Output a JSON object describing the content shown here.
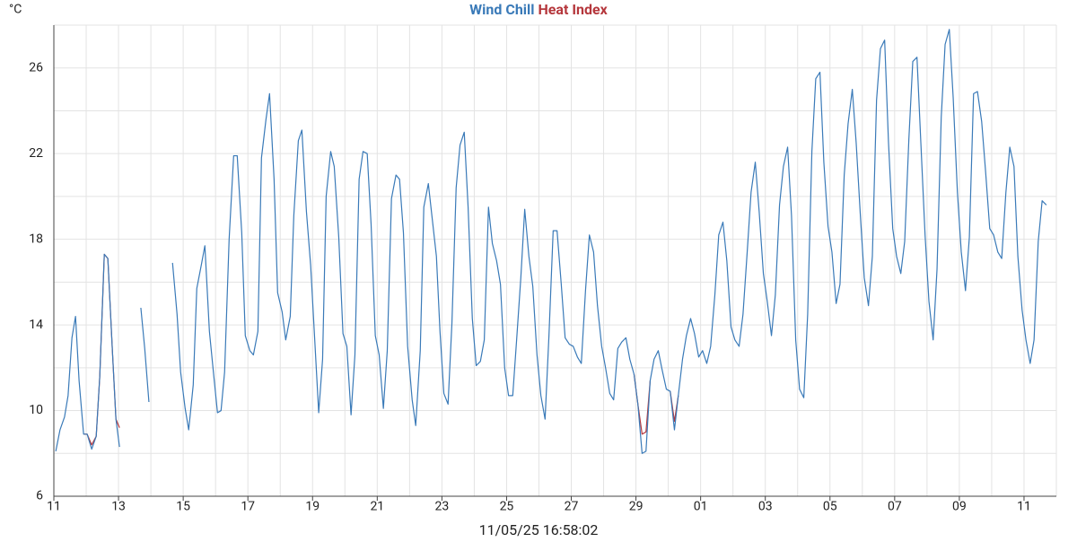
{
  "chart_data": {
    "type": "line",
    "y_unit": "°C",
    "timestamp": "11/05/25 16:58:02",
    "xlim": [
      0,
      31
    ],
    "ylim": [
      6,
      28
    ],
    "xticks": [
      {
        "value": 0,
        "label": "11"
      },
      {
        "value": 2,
        "label": "13"
      },
      {
        "value": 4,
        "label": "15"
      },
      {
        "value": 6,
        "label": "17"
      },
      {
        "value": 8,
        "label": "19"
      },
      {
        "value": 10,
        "label": "21"
      },
      {
        "value": 12,
        "label": "23"
      },
      {
        "value": 14,
        "label": "25"
      },
      {
        "value": 16,
        "label": "27"
      },
      {
        "value": 18,
        "label": "29"
      },
      {
        "value": 20,
        "label": "01"
      },
      {
        "value": 22,
        "label": "03"
      },
      {
        "value": 24,
        "label": "05"
      },
      {
        "value": 26,
        "label": "07"
      },
      {
        "value": 28,
        "label": "09"
      },
      {
        "value": 30,
        "label": "11"
      }
    ],
    "yticks": [
      6,
      10,
      14,
      18,
      22,
      26
    ],
    "xminor": [
      1,
      3,
      5,
      7,
      9,
      11,
      13,
      15,
      17,
      19,
      21,
      23,
      25,
      27,
      29,
      31
    ],
    "yminor": [
      8,
      12,
      16,
      20,
      24,
      28
    ],
    "grid": true,
    "x": [
      0.06,
      0.19,
      0.33,
      0.44,
      0.56,
      0.67,
      0.78,
      0.92,
      1.03,
      1.17,
      1.31,
      1.42,
      1.56,
      1.67,
      1.81,
      1.92,
      2.03,
      2.35,
      2.69,
      2.81,
      2.94,
      3.3,
      3.67,
      3.81,
      3.92,
      4.06,
      4.17,
      4.31,
      4.42,
      4.56,
      4.67,
      4.81,
      4.94,
      5.06,
      5.17,
      5.28,
      5.42,
      5.56,
      5.67,
      5.81,
      5.92,
      6.06,
      6.17,
      6.31,
      6.42,
      6.56,
      6.67,
      6.81,
      6.92,
      7.06,
      7.17,
      7.31,
      7.42,
      7.56,
      7.67,
      7.81,
      7.94,
      8.06,
      8.19,
      8.31,
      8.42,
      8.56,
      8.67,
      8.81,
      8.94,
      9.06,
      9.19,
      9.31,
      9.44,
      9.56,
      9.69,
      9.81,
      9.94,
      10.06,
      10.19,
      10.31,
      10.44,
      10.58,
      10.69,
      10.81,
      10.94,
      11.08,
      11.19,
      11.33,
      11.44,
      11.58,
      11.69,
      11.83,
      11.94,
      12.06,
      12.19,
      12.31,
      12.44,
      12.56,
      12.69,
      12.81,
      12.94,
      13.06,
      13.19,
      13.31,
      13.44,
      13.56,
      13.69,
      13.81,
      13.94,
      14.06,
      14.19,
      14.31,
      14.44,
      14.56,
      14.69,
      14.81,
      14.94,
      15.06,
      15.19,
      15.31,
      15.44,
      15.56,
      15.69,
      15.81,
      15.94,
      16.06,
      16.19,
      16.31,
      16.44,
      16.56,
      16.69,
      16.81,
      16.94,
      17.06,
      17.19,
      17.31,
      17.44,
      17.56,
      17.69,
      17.81,
      17.94,
      18.06,
      18.19,
      18.31,
      18.44,
      18.56,
      18.69,
      18.81,
      18.94,
      19.06,
      19.19,
      19.31,
      19.44,
      19.56,
      19.69,
      19.81,
      19.94,
      20.06,
      20.19,
      20.31,
      20.44,
      20.56,
      20.69,
      20.81,
      20.94,
      21.06,
      21.19,
      21.31,
      21.44,
      21.56,
      21.69,
      21.81,
      21.94,
      22.06,
      22.19,
      22.31,
      22.44,
      22.56,
      22.69,
      22.81,
      22.94,
      23.06,
      23.19,
      23.31,
      23.44,
      23.56,
      23.69,
      23.81,
      23.94,
      24.06,
      24.19,
      24.31,
      24.44,
      24.56,
      24.69,
      24.81,
      24.94,
      25.06,
      25.19,
      25.31,
      25.44,
      25.56,
      25.69,
      25.81,
      25.94,
      26.06,
      26.19,
      26.31,
      26.44,
      26.56,
      26.69,
      26.81,
      26.94,
      27.06,
      27.19,
      27.31,
      27.44,
      27.56,
      27.69,
      27.81,
      27.94,
      28.06,
      28.19,
      28.31,
      28.44,
      28.56,
      28.69,
      28.81,
      28.94,
      29.06,
      29.19,
      29.31,
      29.44,
      29.56,
      29.69,
      29.81,
      29.94,
      30.06,
      30.19,
      30.31,
      30.44,
      30.56,
      30.69
    ],
    "series": [
      {
        "name": "Wind Chill",
        "color": "#3a7ab8",
        "values": [
          8.1,
          9.1,
          9.7,
          10.7,
          13.4,
          14.4,
          11.4,
          8.9,
          8.9,
          8.2,
          8.8,
          11.6,
          17.3,
          17.1,
          12.8,
          9.6,
          8.3,
          null,
          14.8,
          12.9,
          10.4,
          null,
          16.9,
          14.5,
          11.8,
          10.1,
          9.1,
          11.2,
          15.7,
          16.8,
          17.7,
          13.7,
          11.7,
          9.9,
          10.0,
          11.8,
          18.0,
          21.9,
          21.9,
          18.3,
          13.5,
          12.8,
          12.6,
          13.7,
          21.8,
          23.6,
          24.8,
          20.8,
          15.5,
          14.6,
          13.3,
          14.4,
          19.1,
          22.6,
          23.1,
          19.3,
          16.8,
          13.5,
          9.9,
          12.4,
          20.0,
          22.1,
          21.4,
          18.1,
          13.6,
          13.0,
          9.8,
          12.6,
          20.8,
          22.1,
          22.0,
          18.7,
          13.5,
          12.6,
          10.1,
          12.8,
          19.9,
          21.0,
          20.8,
          18.3,
          13.0,
          10.5,
          9.3,
          12.8,
          19.5,
          20.6,
          19.1,
          17.2,
          13.7,
          10.8,
          10.3,
          14.1,
          20.4,
          22.4,
          23.0,
          19.5,
          14.3,
          12.1,
          12.3,
          13.3,
          19.5,
          17.8,
          17.0,
          15.9,
          12.0,
          10.7,
          10.7,
          13.3,
          16.2,
          19.4,
          17.2,
          15.8,
          12.6,
          10.7,
          9.6,
          13.5,
          18.4,
          18.4,
          15.9,
          13.4,
          13.1,
          13.0,
          12.5,
          12.2,
          15.6,
          18.2,
          17.4,
          14.9,
          13.0,
          12.0,
          10.8,
          10.5,
          12.9,
          13.2,
          13.4,
          12.4,
          11.7,
          10.3,
          8.0,
          8.1,
          11.4,
          12.4,
          12.8,
          11.9,
          11.0,
          10.9,
          9.1,
          10.7,
          12.4,
          13.5,
          14.3,
          13.6,
          12.5,
          12.8,
          12.2,
          13.0,
          15.4,
          18.2,
          18.8,
          17.0,
          13.9,
          13.3,
          13.0,
          14.5,
          17.4,
          20.2,
          21.6,
          19.3,
          16.4,
          15.1,
          13.5,
          15.4,
          19.6,
          21.4,
          22.3,
          19.1,
          13.3,
          11.0,
          10.6,
          14.5,
          22.1,
          25.5,
          25.8,
          21.6,
          18.6,
          17.4,
          15.0,
          15.9,
          21.0,
          23.4,
          25.0,
          22.5,
          19.1,
          16.2,
          14.9,
          17.2,
          24.5,
          26.9,
          27.3,
          22.5,
          18.5,
          17.2,
          16.4,
          17.9,
          22.7,
          26.3,
          26.5,
          22.5,
          18.2,
          15.1,
          13.3,
          16.6,
          23.7,
          27.1,
          27.8,
          24.6,
          20.2,
          17.4,
          15.6,
          18.1,
          24.8,
          24.9,
          23.5,
          21.2,
          18.5,
          18.2,
          17.4,
          17.1,
          20.2,
          22.3,
          21.4,
          17.2,
          14.7,
          13.3,
          12.2,
          13.3,
          17.9,
          19.8,
          19.6
        ]
      },
      {
        "name": "Heat Index",
        "color": "#b5373c",
        "values": [
          null,
          null,
          null,
          null,
          null,
          null,
          null,
          8.9,
          8.9,
          8.4,
          8.8,
          11.6,
          17.3,
          17.1,
          12.8,
          9.6,
          9.2,
          null,
          null,
          null,
          null,
          null,
          null,
          null,
          null,
          null,
          null,
          null,
          null,
          null,
          null,
          null,
          null,
          null,
          null,
          null,
          null,
          null,
          null,
          null,
          null,
          null,
          null,
          null,
          null,
          null,
          null,
          null,
          null,
          null,
          null,
          null,
          null,
          null,
          null,
          null,
          null,
          null,
          null,
          null,
          null,
          null,
          null,
          null,
          null,
          null,
          null,
          null,
          null,
          null,
          null,
          null,
          null,
          null,
          null,
          null,
          null,
          null,
          null,
          null,
          null,
          null,
          null,
          null,
          null,
          null,
          null,
          null,
          null,
          null,
          null,
          null,
          null,
          null,
          null,
          null,
          null,
          null,
          null,
          null,
          null,
          null,
          null,
          null,
          null,
          null,
          null,
          null,
          null,
          null,
          null,
          null,
          null,
          null,
          null,
          null,
          null,
          null,
          null,
          null,
          null,
          null,
          null,
          null,
          null,
          null,
          null,
          null,
          null,
          null,
          null,
          null,
          null,
          null,
          null,
          null,
          11.7,
          10.3,
          8.9,
          9.0,
          11.4,
          null,
          null,
          null,
          null,
          10.9,
          9.5,
          10.7,
          null,
          null,
          null,
          null,
          null,
          null,
          null,
          null,
          null,
          null,
          null,
          null,
          null,
          null,
          null,
          null,
          null,
          null,
          null,
          null,
          null,
          null,
          null,
          null,
          null,
          null,
          null,
          null,
          null,
          null,
          null,
          null,
          null,
          null,
          null,
          null,
          null,
          null,
          null,
          null,
          null,
          null,
          null,
          null,
          null,
          null,
          null,
          null,
          null,
          null,
          null,
          null,
          null,
          null,
          null,
          null,
          null,
          null,
          null,
          null,
          null,
          null,
          null,
          null,
          null,
          null,
          null,
          null,
          null,
          null,
          null,
          null,
          null,
          null,
          null,
          null,
          null,
          null,
          null,
          null,
          null,
          null,
          null,
          null,
          null,
          null,
          null,
          null,
          null,
          null,
          null
        ]
      }
    ]
  }
}
